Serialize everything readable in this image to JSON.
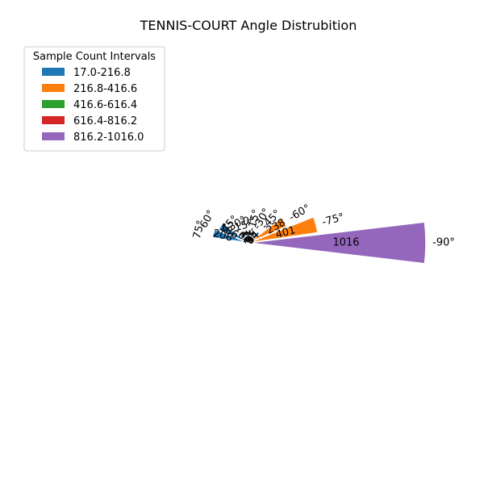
{
  "chart_data": {
    "type": "polar-bar",
    "title": "TENNIS-COURT Angle Distrubition",
    "legend": {
      "title": "Sample Count Intervals",
      "placement": "top-left",
      "entries": [
        {
          "label": "17.0-216.8",
          "color": "#1f77b4"
        },
        {
          "label": "216.8-416.6",
          "color": "#ff7f0e"
        },
        {
          "label": "416.6-616.4",
          "color": "#2ca02c"
        },
        {
          "label": "616.4-816.2",
          "color": "#d62728"
        },
        {
          "label": "816.2-1016.0",
          "color": "#9467bd"
        }
      ]
    },
    "rmax": 1016,
    "bars": [
      {
        "angle": -90,
        "value": 1016,
        "tick": "-90°",
        "value_label": "1016",
        "color": "#9467bd"
      },
      {
        "angle": -75,
        "value": 401,
        "tick": "-75°",
        "value_label": "401",
        "color": "#ff7f0e"
      },
      {
        "angle": -60,
        "value": 238,
        "tick": "-60°",
        "value_label": "238",
        "color": "#ff7f0e"
      },
      {
        "angle": -45,
        "value": 84,
        "tick": "-45°",
        "value_label": "84",
        "color": "#1f77b4"
      },
      {
        "angle": -30,
        "value": 55,
        "tick": "-30°",
        "value_label": "55",
        "color": "#1f77b4"
      },
      {
        "angle": -15,
        "value": 31,
        "tick": "-15°",
        "value_label": "31",
        "color": "#1f77b4"
      },
      {
        "angle": 0,
        "value": 36,
        "tick": "0°",
        "value_label": "36",
        "color": "#1f77b4"
      },
      {
        "angle": 15,
        "value": 17,
        "tick": "15°",
        "value_label": "17",
        "color": "#1f77b4"
      },
      {
        "angle": 30,
        "value": 42,
        "tick": "30°",
        "value_label": "42",
        "color": "#1f77b4"
      },
      {
        "angle": 45,
        "value": 67,
        "tick": "45°",
        "value_label": "67",
        "color": "#1f77b4"
      },
      {
        "angle": 60,
        "value": 186,
        "tick": "60°",
        "value_label": "186",
        "color": "#1f77b4"
      },
      {
        "angle": 75,
        "value": 208,
        "tick": "75°",
        "value_label": "208",
        "color": "#1f77b4"
      }
    ]
  }
}
